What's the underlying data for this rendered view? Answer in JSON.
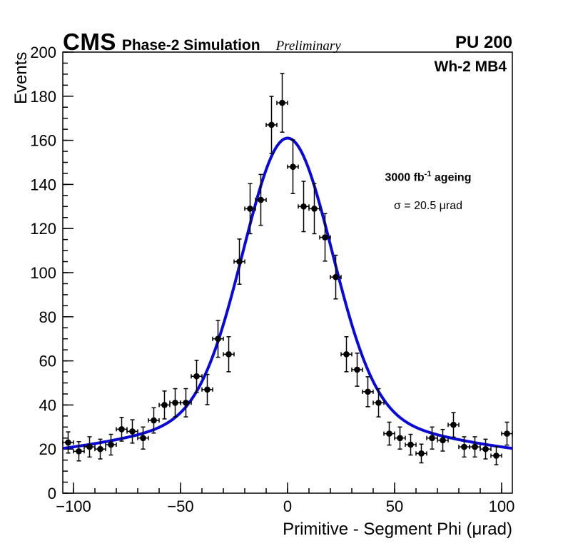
{
  "header": {
    "cms": "CMS",
    "subtitle": "Phase-2 Simulation",
    "preliminary": "Preliminary",
    "pu": "PU 200",
    "region": "Wh-2 MB4"
  },
  "annotations": {
    "lumi_prefix": "3000 fb",
    "lumi_exponent": "-1",
    "lumi_suffix": " ageing",
    "sigma_text": "σ = 20.5 μrad"
  },
  "chart_data": {
    "type": "scatter",
    "title": "",
    "xlabel": "Primitive - Segment Phi (μrad)",
    "ylabel": "Events",
    "xlim": [
      -105,
      105
    ],
    "ylim": [
      0,
      200
    ],
    "grid": false,
    "legend_position": "none",
    "x_ticks": {
      "values": [
        -100,
        -50,
        0,
        50,
        100
      ],
      "labels": [
        "−100",
        "−50",
        "0",
        "50",
        "100"
      ],
      "minor_step": 10
    },
    "y_ticks": {
      "values": [
        0,
        20,
        40,
        60,
        80,
        100,
        120,
        140,
        160,
        180,
        200
      ],
      "labels": [
        "0",
        "20",
        "40",
        "60",
        "80",
        "100",
        "120",
        "140",
        "160",
        "180",
        "200"
      ],
      "minor_step": 5
    },
    "bin_half_width": 2.5,
    "marker_color": "#000000",
    "fit_color": "#0a0ad2",
    "points": [
      {
        "x": -102.5,
        "y": 23
      },
      {
        "x": -97.5,
        "y": 19
      },
      {
        "x": -92.5,
        "y": 21
      },
      {
        "x": -87.5,
        "y": 20
      },
      {
        "x": -82.5,
        "y": 22
      },
      {
        "x": -77.5,
        "y": 29
      },
      {
        "x": -72.5,
        "y": 28
      },
      {
        "x": -67.5,
        "y": 25
      },
      {
        "x": -62.5,
        "y": 33
      },
      {
        "x": -57.5,
        "y": 40
      },
      {
        "x": -52.5,
        "y": 41
      },
      {
        "x": -47.5,
        "y": 41
      },
      {
        "x": -42.5,
        "y": 53
      },
      {
        "x": -37.5,
        "y": 47
      },
      {
        "x": -32.5,
        "y": 70
      },
      {
        "x": -27.5,
        "y": 63
      },
      {
        "x": -22.5,
        "y": 105
      },
      {
        "x": -17.5,
        "y": 129
      },
      {
        "x": -12.5,
        "y": 133
      },
      {
        "x": -7.5,
        "y": 167
      },
      {
        "x": -2.5,
        "y": 177
      },
      {
        "x": 2.5,
        "y": 148
      },
      {
        "x": 7.5,
        "y": 130
      },
      {
        "x": 12.5,
        "y": 129
      },
      {
        "x": 17.5,
        "y": 116
      },
      {
        "x": 22.5,
        "y": 98
      },
      {
        "x": 27.5,
        "y": 63
      },
      {
        "x": 32.5,
        "y": 56
      },
      {
        "x": 37.5,
        "y": 46
      },
      {
        "x": 42.5,
        "y": 41
      },
      {
        "x": 47.5,
        "y": 27
      },
      {
        "x": 52.5,
        "y": 25
      },
      {
        "x": 57.5,
        "y": 22
      },
      {
        "x": 62.5,
        "y": 18
      },
      {
        "x": 67.5,
        "y": 25
      },
      {
        "x": 72.5,
        "y": 24
      },
      {
        "x": 77.5,
        "y": 31
      },
      {
        "x": 82.5,
        "y": 21
      },
      {
        "x": 87.5,
        "y": 21
      },
      {
        "x": 92.5,
        "y": 20
      },
      {
        "x": 97.5,
        "y": 17
      },
      {
        "x": 102.5,
        "y": 27
      }
    ],
    "fit": {
      "model": "baseline + gaussians",
      "baseline": 16,
      "components": [
        {
          "amplitude": 125,
          "mean": 0,
          "sigma": 20.5
        },
        {
          "amplitude": 20,
          "mean": 0,
          "sigma": 60
        }
      ],
      "sigma_microrad": 20.5
    }
  }
}
